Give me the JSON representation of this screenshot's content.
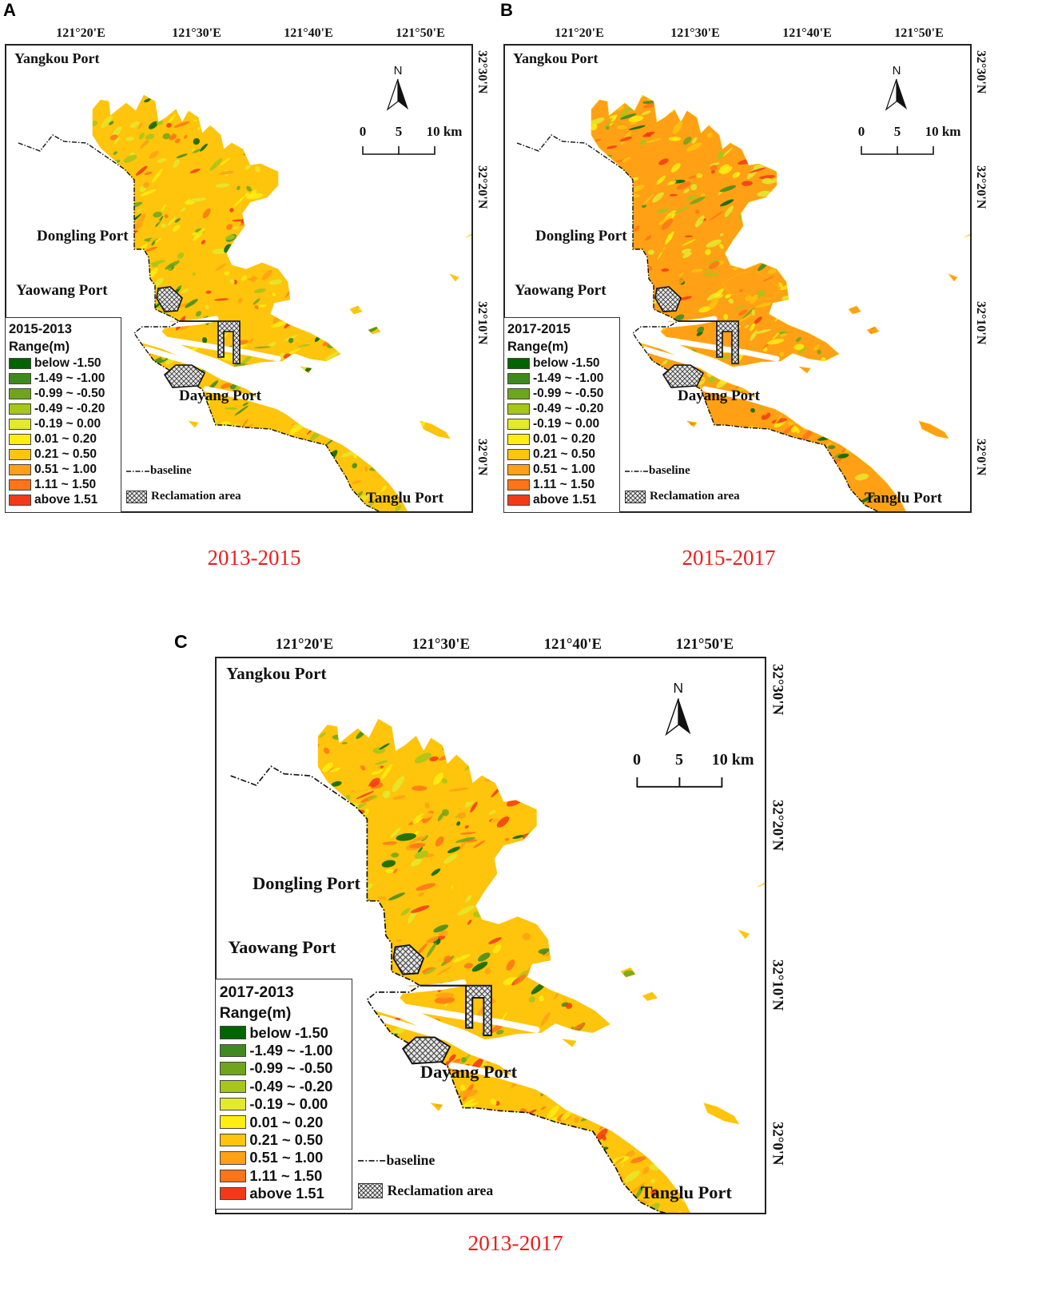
{
  "colors": {
    "classes": [
      "#006400",
      "#3d8b1e",
      "#6ea51c",
      "#a6c61a",
      "#e3ea2e",
      "#ffee10",
      "#ffc40c",
      "#ffa015",
      "#ff7417",
      "#f23a18"
    ],
    "caption": "#ee1c1c",
    "frame": "#222222"
  },
  "map_shared": {
    "lon_labels": [
      "121°20'E",
      "121°30'E",
      "121°40'E",
      "121°50'E"
    ],
    "lat_labels": [
      "32°30'N",
      "32°20'N",
      "32°10'N",
      "32°0'N"
    ],
    "ports": {
      "yangkou": "Yangkou Port",
      "dongling": "Dongling Port",
      "yaowang": "Yaowang Port",
      "dayang": "Dayang Port",
      "tanglu": "Tanglu Port"
    },
    "north_label": "N",
    "scale_labels": [
      "0",
      "5",
      "10 km"
    ],
    "baseline_label": "baseline",
    "reclamation_label": "Reclamation area",
    "legend_subtitle": "Range(m)",
    "legend_items": [
      "below -1.50",
      "-1.49 ~ -1.00",
      "-0.99 ~ -0.50",
      "-0.49 ~ -0.20",
      "-0.19 ~ 0.00",
      "0.01 ~ 0.20",
      "0.21 ~ 0.50",
      "0.51 ~ 1.00",
      "1.11 ~ 1.50",
      "above 1.51"
    ]
  },
  "panels": [
    {
      "letter": "A",
      "legend_title": "2015-2013",
      "caption": "2013-2015"
    },
    {
      "letter": "B",
      "legend_title": "2017-2015",
      "caption": "2015-2017"
    },
    {
      "letter": "C",
      "legend_title": "2017-2013",
      "caption": "2013-2017"
    }
  ]
}
